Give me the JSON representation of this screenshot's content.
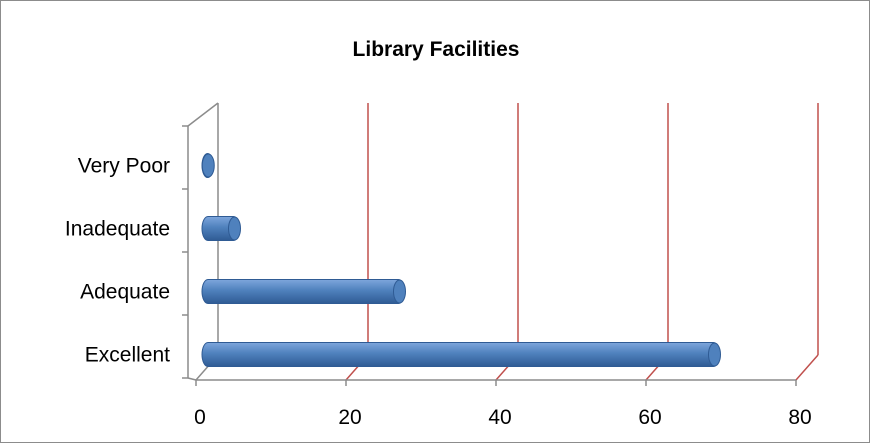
{
  "chart_data": {
    "type": "bar",
    "orientation": "horizontal",
    "title": "Library Facilities",
    "categories": [
      "Excellent",
      "Adequate",
      "Inadequate",
      "Very Poor"
    ],
    "values": [
      69,
      27,
      5,
      1.5
    ],
    "xlim": [
      0,
      80
    ],
    "x_ticks": [
      "0",
      "20",
      "40",
      "60",
      "80"
    ],
    "grid": true,
    "legend": "none",
    "colors": {
      "bar": "#4f81bd",
      "bar_dark": "#2f5b94",
      "bar_light": "#7ea6dc",
      "gridline": "#c0504d",
      "axis": "#8c8c8c"
    }
  }
}
